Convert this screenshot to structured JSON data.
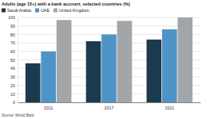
{
  "chart_data": {
    "type": "bar",
    "title": "Adults (age 15+) with a bank account, selected countries (%)",
    "source": "Source: World Bank",
    "categories": [
      "2011",
      "2017",
      "2021"
    ],
    "series": [
      {
        "name": "Saudi Arabia",
        "color": "#1c3a4e",
        "values": [
          46,
          72,
          74
        ]
      },
      {
        "name": "UAE",
        "color": "#4f94c8",
        "values": [
          60,
          80,
          86
        ]
      },
      {
        "name": "United Kingdom",
        "color": "#a3a6a8",
        "values": [
          97,
          96,
          100
        ]
      }
    ],
    "ylim": [
      0,
      100
    ],
    "yticks": [
      0,
      10,
      20,
      30,
      40,
      50,
      60,
      70,
      80,
      90,
      100
    ],
    "grid": true,
    "legend": "top-left"
  }
}
